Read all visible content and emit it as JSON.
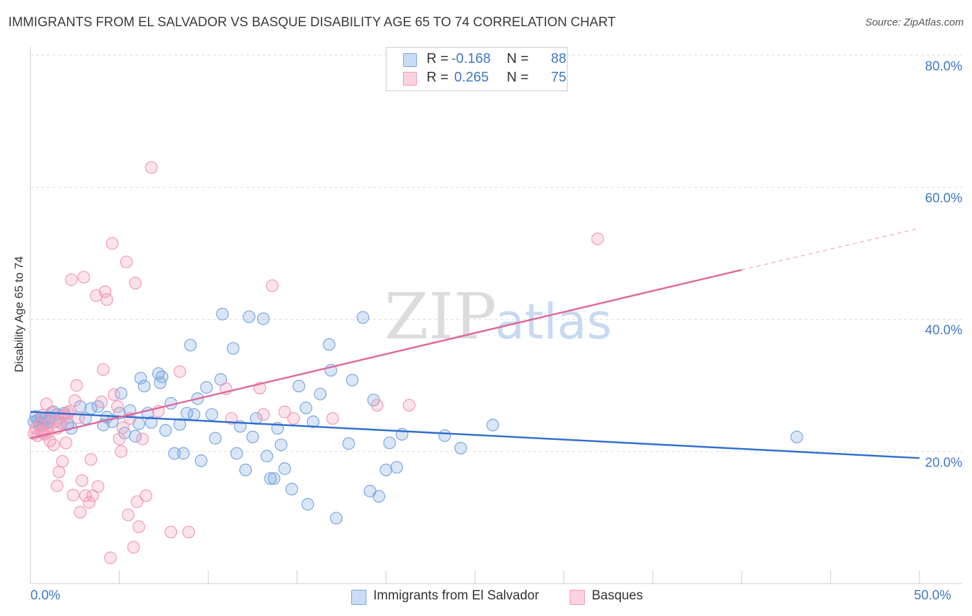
{
  "header": {
    "title": "IMMIGRANTS FROM EL SALVADOR VS BASQUE DISABILITY AGE 65 TO 74 CORRELATION CHART",
    "source": "Source: ZipAtlas.com"
  },
  "watermark": {
    "part1": "ZIP",
    "part2": "atlas"
  },
  "legend": {
    "r_label": "R =",
    "n_label": "N =",
    "rows": [
      {
        "r": "-0.168",
        "n": "88",
        "color": "#7aa6e0"
      },
      {
        "r": "0.265",
        "n": "75",
        "color": "#f19ab7"
      }
    ]
  },
  "bottom_legend": [
    {
      "label": "Immigrants from El Salvador",
      "color": "#7aa6e0"
    },
    {
      "label": "Basques",
      "color": "#f19ab7"
    }
  ],
  "chart_data": {
    "type": "scatter",
    "title": "IMMIGRANTS FROM EL SALVADOR VS BASQUE DISABILITY AGE 65 TO 74 CORRELATION CHART",
    "xlabel": "",
    "ylabel": "Disability Age 65 to 74",
    "xlim": [
      0,
      50
    ],
    "ylim": [
      0,
      80
    ],
    "x_tick_labels": [
      "0.0%",
      "50.0%"
    ],
    "y_ticks": [
      20,
      40,
      60,
      80
    ],
    "y_tick_labels": [
      "20.0%",
      "40.0%",
      "60.0%",
      "80.0%"
    ],
    "grid": true,
    "legend_placement": "top-center",
    "series": [
      {
        "name": "Immigrants from El Salvador",
        "color": "#7aa6e0",
        "line_color": "#2f6fce",
        "trend": [
          [
            0,
            26.0
          ],
          [
            50,
            19.0
          ]
        ],
        "points": [
          [
            0.2,
            24.5
          ],
          [
            0.3,
            25.3
          ],
          [
            0.4,
            24.7
          ],
          [
            0.5,
            24.2
          ],
          [
            0.6,
            25.0
          ],
          [
            0.7,
            24.0
          ],
          [
            0.8,
            24.8
          ],
          [
            0.9,
            24.3
          ],
          [
            1.0,
            24.6
          ],
          [
            1.1,
            25.1
          ],
          [
            1.3,
            26.0
          ],
          [
            1.5,
            25.6
          ],
          [
            1.7,
            24.3
          ],
          [
            1.9,
            25.8
          ],
          [
            2.1,
            24.1
          ],
          [
            2.3,
            23.5
          ],
          [
            2.8,
            26.8
          ],
          [
            3.1,
            25.0
          ],
          [
            3.4,
            26.5
          ],
          [
            3.8,
            26.8
          ],
          [
            4.1,
            24.0
          ],
          [
            4.3,
            25.2
          ],
          [
            4.6,
            24.5
          ],
          [
            5.0,
            25.8
          ],
          [
            5.1,
            28.8
          ],
          [
            5.3,
            22.8
          ],
          [
            5.6,
            26.2
          ],
          [
            5.9,
            22.3
          ],
          [
            6.1,
            24.2
          ],
          [
            6.2,
            31.1
          ],
          [
            6.4,
            29.9
          ],
          [
            6.6,
            25.8
          ],
          [
            6.8,
            24.4
          ],
          [
            7.2,
            31.8
          ],
          [
            7.3,
            30.4
          ],
          [
            7.4,
            31.3
          ],
          [
            7.6,
            23.2
          ],
          [
            7.9,
            27.3
          ],
          [
            8.1,
            19.7
          ],
          [
            8.4,
            24.1
          ],
          [
            8.6,
            19.7
          ],
          [
            8.8,
            25.8
          ],
          [
            9.0,
            36.1
          ],
          [
            9.2,
            25.6
          ],
          [
            9.4,
            28.0
          ],
          [
            9.6,
            18.6
          ],
          [
            9.9,
            29.7
          ],
          [
            10.2,
            25.6
          ],
          [
            10.4,
            22.0
          ],
          [
            10.7,
            30.9
          ],
          [
            10.8,
            40.8
          ],
          [
            11.4,
            35.6
          ],
          [
            11.6,
            19.7
          ],
          [
            11.8,
            23.8
          ],
          [
            12.1,
            17.2
          ],
          [
            12.3,
            40.4
          ],
          [
            12.5,
            22.2
          ],
          [
            12.7,
            25.0
          ],
          [
            13.1,
            40.1
          ],
          [
            13.3,
            19.3
          ],
          [
            13.5,
            15.9
          ],
          [
            13.7,
            15.9
          ],
          [
            13.9,
            23.5
          ],
          [
            14.1,
            21.0
          ],
          [
            14.3,
            17.4
          ],
          [
            14.7,
            14.3
          ],
          [
            15.1,
            29.9
          ],
          [
            15.5,
            26.6
          ],
          [
            15.6,
            12.0
          ],
          [
            15.9,
            24.5
          ],
          [
            16.3,
            28.7
          ],
          [
            16.8,
            36.2
          ],
          [
            16.9,
            32.3
          ],
          [
            17.2,
            9.9
          ],
          [
            17.9,
            21.2
          ],
          [
            18.1,
            30.8
          ],
          [
            18.7,
            40.3
          ],
          [
            19.1,
            14.0
          ],
          [
            19.3,
            27.8
          ],
          [
            19.6,
            13.2
          ],
          [
            20.0,
            17.2
          ],
          [
            20.2,
            21.3
          ],
          [
            20.6,
            17.6
          ],
          [
            20.9,
            22.6
          ],
          [
            23.3,
            22.4
          ],
          [
            24.2,
            20.5
          ],
          [
            26.0,
            24.0
          ],
          [
            43.1,
            22.2
          ]
        ]
      },
      {
        "name": "Basques",
        "color": "#f19ab7",
        "line_color": "#e0689a",
        "trend": [
          [
            0,
            22.0
          ],
          [
            40,
            47.5
          ]
        ],
        "trend_dashed": [
          [
            40,
            47.5
          ],
          [
            50,
            53.8
          ]
        ],
        "points": [
          [
            0.2,
            22.7
          ],
          [
            0.3,
            23.5
          ],
          [
            0.4,
            22.4
          ],
          [
            0.5,
            24.0
          ],
          [
            0.6,
            23.0
          ],
          [
            0.7,
            25.5
          ],
          [
            0.8,
            22.6
          ],
          [
            0.9,
            27.2
          ],
          [
            1.0,
            23.8
          ],
          [
            1.1,
            21.6
          ],
          [
            1.2,
            25.9
          ],
          [
            1.3,
            21.0
          ],
          [
            1.4,
            24.5
          ],
          [
            1.5,
            14.8
          ],
          [
            1.6,
            16.9
          ],
          [
            1.7,
            24.3
          ],
          [
            1.8,
            18.5
          ],
          [
            1.9,
            25.5
          ],
          [
            2.0,
            21.3
          ],
          [
            2.1,
            25.9
          ],
          [
            2.2,
            26.1
          ],
          [
            2.3,
            46.0
          ],
          [
            2.4,
            13.4
          ],
          [
            2.5,
            27.7
          ],
          [
            2.6,
            30.0
          ],
          [
            2.7,
            25.1
          ],
          [
            2.8,
            10.8
          ],
          [
            2.9,
            15.6
          ],
          [
            3.0,
            46.4
          ],
          [
            3.1,
            13.3
          ],
          [
            3.3,
            12.3
          ],
          [
            3.4,
            18.8
          ],
          [
            3.5,
            13.3
          ],
          [
            3.7,
            43.6
          ],
          [
            3.8,
            14.7
          ],
          [
            4.0,
            27.5
          ],
          [
            4.1,
            32.4
          ],
          [
            4.2,
            44.2
          ],
          [
            4.3,
            43.0
          ],
          [
            4.5,
            3.9
          ],
          [
            4.6,
            51.5
          ],
          [
            4.7,
            28.6
          ],
          [
            4.9,
            26.8
          ],
          [
            5.0,
            21.9
          ],
          [
            5.1,
            20.0
          ],
          [
            5.2,
            23.6
          ],
          [
            5.4,
            48.7
          ],
          [
            5.5,
            10.4
          ],
          [
            5.6,
            25.0
          ],
          [
            5.8,
            5.5
          ],
          [
            5.9,
            45.5
          ],
          [
            6.0,
            12.4
          ],
          [
            6.1,
            8.6
          ],
          [
            6.3,
            21.9
          ],
          [
            6.5,
            13.3
          ],
          [
            6.8,
            63.0
          ],
          [
            7.2,
            26.1
          ],
          [
            7.9,
            7.8
          ],
          [
            8.4,
            32.1
          ],
          [
            8.9,
            7.8
          ],
          [
            11.0,
            29.5
          ],
          [
            11.3,
            25.0
          ],
          [
            12.9,
            29.6
          ],
          [
            13.1,
            25.6
          ],
          [
            13.6,
            45.1
          ],
          [
            14.3,
            26.0
          ],
          [
            14.8,
            25.0
          ],
          [
            17.0,
            25.0
          ],
          [
            19.5,
            27.0
          ],
          [
            21.3,
            27.0
          ],
          [
            31.9,
            52.2
          ],
          [
            1.0,
            22.9
          ],
          [
            0.7,
            22.8
          ],
          [
            1.5,
            23.5
          ],
          [
            2.0,
            25.2
          ]
        ]
      }
    ]
  }
}
